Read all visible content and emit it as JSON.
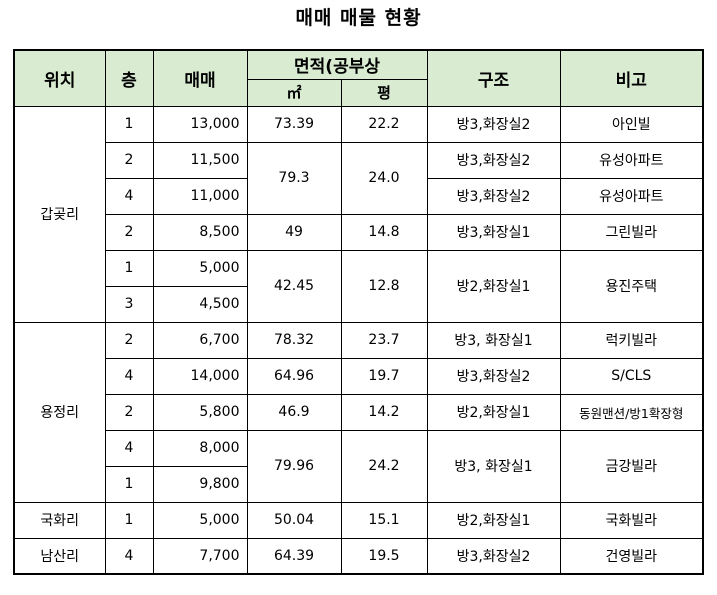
{
  "title": "매매 매물 현황",
  "headers": {
    "location": "위치",
    "floor": "층",
    "price": "매매",
    "area_group": "면적(공부상",
    "sqm": "㎡",
    "pyeong": "평",
    "structure": "구조",
    "note": "비고"
  },
  "groups": [
    {
      "location": "갑곶리"
    },
    {
      "location": "용정리"
    },
    {
      "location": "국화리"
    },
    {
      "location": "남산리"
    }
  ],
  "rows": [
    {
      "floor": "1",
      "price": "13,000",
      "sqm": "73.39",
      "pyeong": "22.2",
      "structure": "방3,화장실2",
      "note": "아인빌"
    },
    {
      "floor": "2",
      "price": "11,500",
      "sqm": "79.3",
      "pyeong": "24.0",
      "structure": "방3,화장실2",
      "note": "유성아파트"
    },
    {
      "floor": "4",
      "price": "11,000",
      "structure": "방3,화장실2",
      "note": "유성아파트"
    },
    {
      "floor": "2",
      "price": "8,500",
      "sqm": "49",
      "pyeong": "14.8",
      "structure": "방3,화장실1",
      "note": "그린빌라"
    },
    {
      "floor": "1",
      "price": "5,000",
      "sqm": "42.45",
      "pyeong": "12.8",
      "structure": "방2,화장실1",
      "note": "용진주택"
    },
    {
      "floor": "3",
      "price": "4,500"
    },
    {
      "floor": "2",
      "price": "6,700",
      "sqm": "78.32",
      "pyeong": "23.7",
      "structure": "방3, 화장실1",
      "note": "럭키빌라"
    },
    {
      "floor": "4",
      "price": "14,000",
      "sqm": "64.96",
      "pyeong": "19.7",
      "structure": "방3,화장실2",
      "note": "S/CLS"
    },
    {
      "floor": "2",
      "price": "5,800",
      "sqm": "46.9",
      "pyeong": "14.2",
      "structure": "방2,화장실1",
      "note": "동원맨션/방1확장형"
    },
    {
      "floor": "4",
      "price": "8,000",
      "sqm": "79.96",
      "pyeong": "24.2",
      "structure": "방3, 화장실1",
      "note": "금강빌라"
    },
    {
      "floor": "1",
      "price": "9,800"
    },
    {
      "floor": "1",
      "price": "5,000",
      "sqm": "50.04",
      "pyeong": "15.1",
      "structure": "방2,화장실1",
      "note": "국화빌라"
    },
    {
      "floor": "4",
      "price": "7,700",
      "sqm": "64.39",
      "pyeong": "19.5",
      "structure": "방3,화장실2",
      "note": "건영빌라"
    }
  ]
}
